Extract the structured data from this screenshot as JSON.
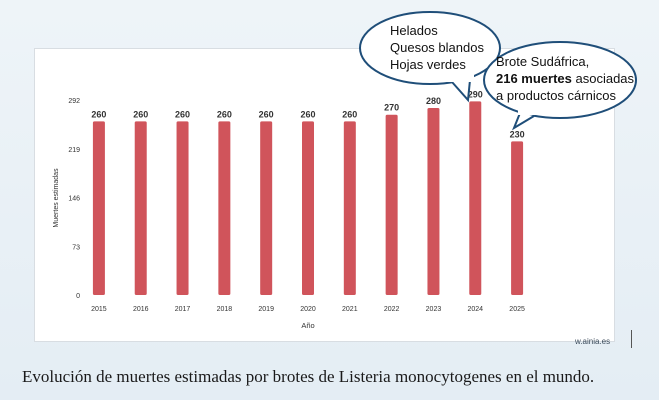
{
  "chart_data": {
    "type": "bar",
    "xlabel": "Año",
    "ylabel": "Muertes estimadas",
    "categories": [
      "2015",
      "2016",
      "2017",
      "2018",
      "2019",
      "2020",
      "2021",
      "2022",
      "2023",
      "2024",
      "2025"
    ],
    "values": [
      260,
      260,
      260,
      260,
      260,
      260,
      260,
      270,
      280,
      290,
      230
    ],
    "data_labels": [
      "260",
      "260",
      "260",
      "260",
      "260",
      "260",
      "260",
      "270",
      "280",
      "290",
      "230"
    ],
    "y_ticks": [
      0,
      73,
      146,
      219,
      292
    ],
    "ylim": [
      0,
      292
    ],
    "grid": false,
    "bar_color": "#d0545b"
  },
  "callouts": [
    {
      "lines": [
        "Helados",
        "Quesos blandos",
        "Hojas verdes"
      ]
    },
    {
      "line1": "Brote Sudáfrica,",
      "bold": "216 muertes",
      "rest": " asociadas",
      "line3": "a productos cárnicos"
    }
  ],
  "caption": "Evolución de muertes estimadas por brotes de Listeria monocytogenes en el mundo.",
  "watermark": "w.ainia.es",
  "colors": {
    "callout_border": "#1f4e79",
    "bar": "#d0545b"
  }
}
